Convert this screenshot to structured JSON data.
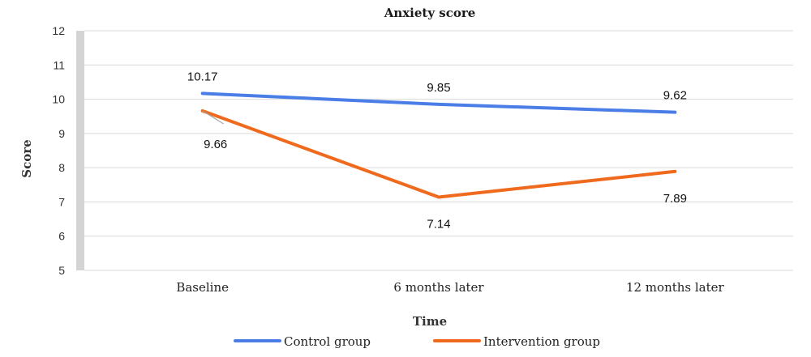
{
  "chart_data": {
    "type": "line",
    "title": "Anxiety score",
    "xlabel": "Time",
    "ylabel": "Score",
    "categories": [
      "Baseline",
      "6 months later",
      "12 months later"
    ],
    "ylim": [
      5,
      12
    ],
    "yticks": [
      "5",
      "6",
      "7",
      "8",
      "9",
      "10",
      "11",
      "12"
    ],
    "grid": true,
    "legend_position": "bottom",
    "series": [
      {
        "name": "Control group",
        "color": "#4a7ee6",
        "values": [
          10.17,
          9.85,
          9.62
        ],
        "labels": [
          "10.17",
          "9.85",
          "9.62"
        ]
      },
      {
        "name": "Intervention group",
        "color": "#f06a1e",
        "values": [
          9.66,
          7.14,
          7.89
        ],
        "labels": [
          "9.66",
          "7.14",
          "7.89"
        ]
      }
    ]
  }
}
